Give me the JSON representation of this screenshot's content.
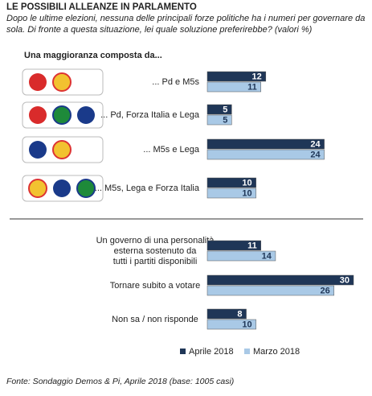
{
  "chart_data": {
    "type": "hbar",
    "title": "LE POSSIBILI ALLEANZE IN PARLAMENTO",
    "subtitle": [
      "Dopo le ultime elezioni, nessuna delle principali forze politiche ha i numeri per governare da",
      "sola. Di fronte a questa situazione, lei quale soluzione preferirebbe? (valori %)"
    ],
    "group_label": "Una maggioranza composta da...",
    "categories": [
      "... Pd e M5s",
      "... Pd, Forza Italia e Lega",
      "... M5s e Lega",
      "... M5s, Lega e Forza Italia",
      "Un governo di una personalità\nesterna sostenuto da\ntutti i partiti disponibili",
      "Tornare subito a votare",
      "Non sa / non risponde"
    ],
    "series": [
      {
        "name": "Aprile 2018",
        "color": "#1f3657",
        "values": [
          12,
          5,
          24,
          10,
          11,
          30,
          8
        ]
      },
      {
        "name": "Marzo 2018",
        "color": "#a9c9e6",
        "values": [
          11,
          5,
          24,
          10,
          14,
          26,
          10
        ]
      }
    ],
    "source": "Fonte: Sondaggio Demos & Pi, Aprile 2018 (base: 1005 casi)"
  }
}
